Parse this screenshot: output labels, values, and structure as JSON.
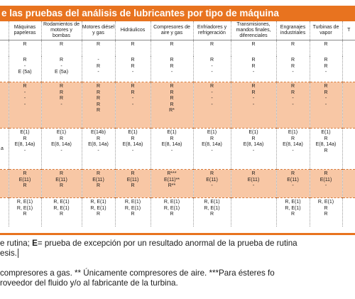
{
  "title": "e las pruebas del análisis de lubricantes por tipo de máquina",
  "columns": [
    "",
    "Máquinas papeleras",
    "Rodamientos de motores y bombas",
    "Motores diésel y gas",
    "Hidráulicos",
    "Compresores de aire y gas",
    "Enfriadores y refrigeración",
    "Transmisiones, mandos finales, diferenciales",
    "Engranajes industriales",
    "Turbinas de vapor",
    "T"
  ],
  "rows": [
    {
      "style": "white",
      "height": 20,
      "cells": [
        "",
        "R",
        "R",
        "R",
        "R",
        "R",
        "R",
        "R",
        "R",
        "R",
        ""
      ]
    },
    {
      "style": "white",
      "height": 34,
      "cells": [
        "",
        "R\n-\nE (5a)",
        "R\n-\nE (5a)",
        "-\nR\n-",
        "R\nR\n-",
        "R\nR\n-",
        "R\n-\n-",
        "R\nR\n-",
        "R\nR\n-",
        "R\nR\n-",
        ""
      ]
    },
    {
      "style": "orange",
      "height": 62,
      "cells": [
        "",
        "R\n-\n-\n-",
        "R\nR\nR\n-",
        "R\nR\nR\nR\nR",
        "R\nR\n-\n-",
        "R\nR\nR\nR\nR*",
        "R\n-\n-\n-",
        "R\nR\n-\n-",
        "R\nR\n-\n-",
        "R\nR\n-\n-",
        ""
      ]
    },
    {
      "style": "white",
      "height": 55,
      "cells": [
        "a",
        "E(1)\nR\nE(8, 14a)\n-",
        "E(1)\nR\nE(8, 14a)\n-",
        "E(14b)\nR\nE(8, 14a)\n-",
        "E(1)\nR\nE(8, 14a)\n-",
        "E(1)\nR\nE(8, 14a)\n-",
        "E(1)\nR\nE(8, 14a)\n-",
        "E(1)\nR\nE(8, 14a)\n-",
        "E(1)\nR\nE(8, 14a)\n-",
        "E(1)\nR\nE(8, 14a)\nR",
        ""
      ]
    },
    {
      "style": "orange",
      "height": 37,
      "cells": [
        "",
        "R\nE(11)\nR",
        "R\nE(11)\nR",
        "R\nE(11)\nR",
        "R\nE(11)\nR",
        "R***\nE(11)**\nR**",
        "R\nE(11)\n-",
        "R\nE(11)\n-",
        "R\nE(11)\n-",
        "R\nE(11)\n-",
        ""
      ]
    },
    {
      "style": "white",
      "height": 38,
      "cells": [
        "",
        "R, E(1)\nR, E(1)\nR",
        "R, E(1)\nR, E(1)\nR",
        "R, E(1)\nR, E(1)\nR",
        "R, E(1)\nR, E(1)\nR",
        "R, E(1)\nR, E(1)\nR",
        "R, E(1)\nR, E(1)\nR",
        "",
        "R, E(1)\nR, E(1)\nR",
        "R, E(1)\nR\nR",
        ""
      ]
    }
  ],
  "notes": {
    "line1_a": "e rutina; ",
    "line1_b": "E",
    "line1_c": "= prueba de excepción por un resultado anormal de la prueba de rutina",
    "line2": "esis.",
    "line3": "compresores a gas. ** Únicamente compresores de aire. ***Para ésteres fo",
    "line4": "roveedor del fluido y/o al fabricante de la turbina."
  },
  "colors": {
    "accent": "#e8731f",
    "band": "#f8c7a5"
  }
}
